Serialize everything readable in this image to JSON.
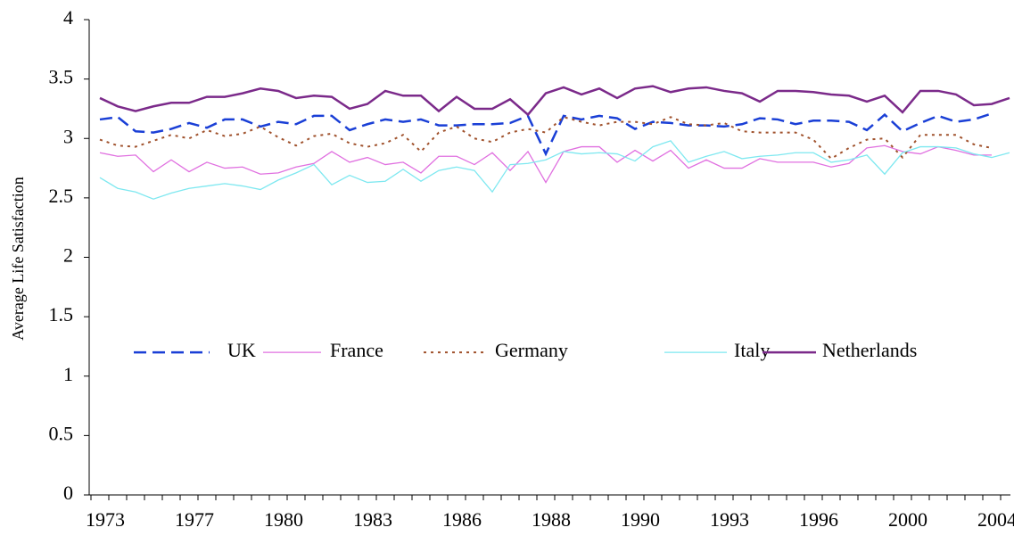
{
  "chart_data": {
    "type": "line",
    "y_label": "Average Life Satisfaction",
    "categories": [
      "1973",
      null,
      null,
      null,
      null,
      "1977",
      null,
      null,
      null,
      null,
      "1980",
      null,
      null,
      null,
      null,
      "1983",
      null,
      null,
      null,
      null,
      "1986",
      null,
      null,
      null,
      null,
      "1988",
      null,
      null,
      null,
      null,
      "1990",
      null,
      null,
      null,
      null,
      "1993",
      null,
      null,
      null,
      null,
      "1996",
      null,
      null,
      null,
      null,
      "2000",
      null,
      null,
      null,
      null,
      "2004",
      null
    ],
    "ylim": [
      0,
      4
    ],
    "yticks": [
      0,
      0.5,
      1,
      1.5,
      2,
      2.5,
      3,
      3.5,
      4
    ],
    "grid": false,
    "legend": "center",
    "series": [
      {
        "name": "UK",
        "color": "#1a3fd6",
        "dash": "dashed",
        "values": [
          3.16,
          3.18,
          3.06,
          3.05,
          3.08,
          3.13,
          3.09,
          3.16,
          3.16,
          3.1,
          3.14,
          3.12,
          3.19,
          3.19,
          3.07,
          3.12,
          3.16,
          3.14,
          3.16,
          3.11,
          3.11,
          3.12,
          3.12,
          3.13,
          3.19,
          2.87,
          3.19,
          3.16,
          3.19,
          3.17,
          3.08,
          3.14,
          3.13,
          3.11,
          3.11,
          3.1,
          3.12,
          3.17,
          3.16,
          3.12,
          3.15,
          3.15,
          3.14,
          3.07,
          3.2,
          3.06,
          3.13,
          3.19,
          3.14,
          3.16,
          3.21,
          null
        ]
      },
      {
        "name": "France",
        "color": "#e070e0",
        "dash": "solid",
        "values": [
          2.88,
          2.85,
          2.86,
          2.72,
          2.82,
          2.72,
          2.8,
          2.75,
          2.76,
          2.7,
          2.71,
          2.76,
          2.79,
          2.89,
          2.8,
          2.84,
          2.78,
          2.8,
          2.71,
          2.85,
          2.85,
          2.78,
          2.88,
          2.73,
          2.89,
          2.63,
          2.89,
          2.93,
          2.93,
          2.8,
          2.9,
          2.81,
          2.9,
          2.75,
          2.82,
          2.75,
          2.75,
          2.83,
          2.8,
          2.8,
          2.8,
          2.76,
          2.79,
          2.92,
          2.94,
          2.89,
          2.87,
          2.93,
          2.9,
          2.86,
          2.86,
          null
        ]
      },
      {
        "name": "Germany",
        "color": "#a0522d",
        "dash": "dotted",
        "values": [
          2.99,
          2.94,
          2.93,
          2.98,
          3.03,
          3.0,
          3.07,
          3.02,
          3.04,
          3.1,
          3.01,
          2.94,
          3.02,
          3.04,
          2.96,
          2.93,
          2.96,
          3.03,
          2.89,
          3.05,
          3.1,
          3.0,
          2.97,
          3.05,
          3.08,
          3.05,
          3.18,
          3.14,
          3.11,
          3.14,
          3.14,
          3.12,
          3.18,
          3.12,
          3.11,
          3.13,
          3.06,
          3.05,
          3.05,
          3.05,
          2.99,
          2.83,
          2.92,
          2.99,
          3.0,
          2.84,
          3.03,
          3.03,
          3.03,
          2.95,
          2.92,
          null
        ]
      },
      {
        "name": "Italy",
        "color": "#7ee8f0",
        "dash": "solid",
        "values": [
          2.67,
          2.58,
          2.55,
          2.49,
          2.54,
          2.58,
          2.6,
          2.62,
          2.6,
          2.57,
          2.65,
          2.71,
          2.78,
          2.61,
          2.69,
          2.63,
          2.64,
          2.74,
          2.64,
          2.73,
          2.76,
          2.73,
          2.55,
          2.78,
          2.79,
          2.82,
          2.89,
          2.87,
          2.88,
          2.87,
          2.81,
          2.93,
          2.98,
          2.8,
          2.85,
          2.89,
          2.83,
          2.85,
          2.86,
          2.88,
          2.88,
          2.8,
          2.82,
          2.86,
          2.7,
          2.88,
          2.93,
          2.93,
          2.92,
          2.87,
          2.84,
          2.88
        ]
      },
      {
        "name": "Netherlands",
        "color": "#7b2a8a",
        "dash": "thick",
        "values": [
          3.34,
          3.27,
          3.23,
          3.27,
          3.3,
          3.3,
          3.35,
          3.35,
          3.38,
          3.42,
          3.4,
          3.34,
          3.36,
          3.35,
          3.25,
          3.29,
          3.4,
          3.36,
          3.36,
          3.23,
          3.35,
          3.25,
          3.25,
          3.33,
          3.2,
          3.38,
          3.43,
          3.37,
          3.42,
          3.34,
          3.42,
          3.44,
          3.39,
          3.42,
          3.43,
          3.4,
          3.38,
          3.31,
          3.4,
          3.4,
          3.39,
          3.37,
          3.36,
          3.31,
          3.36,
          3.22,
          3.4,
          3.4,
          3.37,
          3.28,
          3.29,
          3.34
        ]
      }
    ]
  }
}
